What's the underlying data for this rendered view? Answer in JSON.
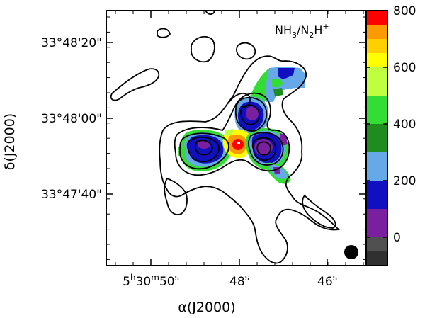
{
  "chart_data": {
    "type": "heatmap",
    "title": "NH3/N2H+",
    "panel_label": {
      "main": "NH",
      "sub1": "3",
      "slash": "/N",
      "sub2": "2",
      "mid": "H",
      "sup": "+"
    },
    "xlabel": "α(J2000)",
    "ylabel": "δ(J2000)",
    "x_axis": {
      "ticks": [
        {
          "value": "5h30m50s",
          "parts": {
            "h": "5",
            "hu": "h",
            "m": "30",
            "mu": "m",
            "s": "50",
            "su": "s"
          }
        },
        {
          "value": "48s",
          "parts": {
            "s": "48",
            "su": "s"
          }
        },
        {
          "value": "46s",
          "parts": {
            "s": "46",
            "su": "s"
          }
        }
      ]
    },
    "y_axis": {
      "ticks": [
        "33°48'20\"",
        "33°48'00\"",
        "33°47'40\""
      ]
    },
    "colorbar": {
      "range": [
        -100,
        800
      ],
      "ticks": [
        "0",
        "200",
        "400",
        "600",
        "800"
      ],
      "tick_values": [
        0,
        200,
        400,
        600,
        800
      ],
      "bins": [
        {
          "from": -100,
          "to": -50,
          "color": "#303030"
        },
        {
          "from": -50,
          "to": 0,
          "color": "#505050"
        },
        {
          "from": 0,
          "to": 100,
          "color": "#7a1fa0"
        },
        {
          "from": 100,
          "to": 200,
          "color": "#1010c0"
        },
        {
          "from": 200,
          "to": 300,
          "color": "#66a8e8"
        },
        {
          "from": 300,
          "to": 400,
          "color": "#1e8c1e"
        },
        {
          "from": 400,
          "to": 500,
          "color": "#33dd33"
        },
        {
          "from": 500,
          "to": 600,
          "color": "#bfff3f"
        },
        {
          "from": 600,
          "to": 650,
          "color": "#ffff00"
        },
        {
          "from": 650,
          "to": 700,
          "color": "#ffd000"
        },
        {
          "from": 700,
          "to": 750,
          "color": "#ff9900"
        },
        {
          "from": 750,
          "to": 800,
          "color": "#ff0000"
        }
      ]
    },
    "beam_marker": "filled-circle"
  }
}
